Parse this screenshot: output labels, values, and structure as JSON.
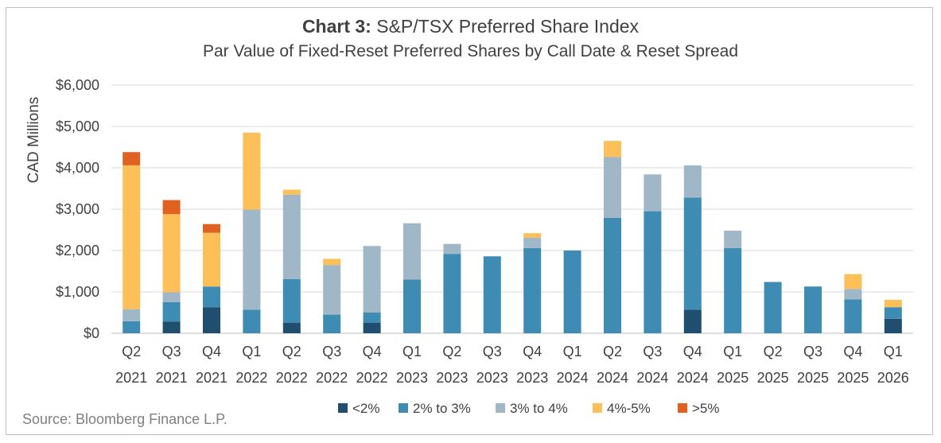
{
  "title_bold": "Chart 3:",
  "title_rest": " S&P/TSX Preferred Share Index",
  "subtitle": "Par Value of Fixed-Reset Preferred Shares by Call Date & Reset Spread",
  "source": "Source: Bloomberg Finance L.P.",
  "chart_data": {
    "type": "bar",
    "stacked": true,
    "title": "Chart 3: S&P/TSX Preferred Share Index",
    "subtitle": "Par Value of Fixed-Reset Preferred Shares by Call Date & Reset Spread",
    "ylabel": "CAD Millions",
    "xlabel": "",
    "ylim": [
      0,
      6000
    ],
    "yticks": [
      0,
      1000,
      2000,
      3000,
      4000,
      5000,
      6000
    ],
    "ytick_labels": [
      "$0",
      "$1,000",
      "$2,000",
      "$3,000",
      "$4,000",
      "$5,000",
      "$6,000"
    ],
    "grid": true,
    "legend_position": "bottom",
    "categories": [
      {
        "q": "Q2",
        "y": "2021"
      },
      {
        "q": "Q3",
        "y": "2021"
      },
      {
        "q": "Q4",
        "y": "2021"
      },
      {
        "q": "Q1",
        "y": "2022"
      },
      {
        "q": "Q2",
        "y": "2022"
      },
      {
        "q": "Q3",
        "y": "2022"
      },
      {
        "q": "Q4",
        "y": "2022"
      },
      {
        "q": "Q1",
        "y": "2023"
      },
      {
        "q": "Q2",
        "y": "2023"
      },
      {
        "q": "Q3",
        "y": "2023"
      },
      {
        "q": "Q4",
        "y": "2023"
      },
      {
        "q": "Q1",
        "y": "2024"
      },
      {
        "q": "Q2",
        "y": "2024"
      },
      {
        "q": "Q3",
        "y": "2024"
      },
      {
        "q": "Q4",
        "y": "2024"
      },
      {
        "q": "Q1",
        "y": "2025"
      },
      {
        "q": "Q2",
        "y": "2025"
      },
      {
        "q": "Q3",
        "y": "2025"
      },
      {
        "q": "Q4",
        "y": "2025"
      },
      {
        "q": "Q1",
        "y": "2026"
      }
    ],
    "series": [
      {
        "name": "<2%",
        "color": "#1f4e6e",
        "values": [
          0,
          280,
          630,
          0,
          250,
          0,
          250,
          0,
          0,
          0,
          0,
          0,
          0,
          0,
          570,
          0,
          0,
          0,
          0,
          350
        ]
      },
      {
        "name": "2% to 3%",
        "color": "#3e8cb3",
        "values": [
          290,
          470,
          500,
          570,
          1060,
          450,
          250,
          1300,
          1920,
          1860,
          2060,
          2000,
          2790,
          2950,
          2710,
          2060,
          1240,
          1130,
          820,
          280
        ]
      },
      {
        "name": "3% to 4%",
        "color": "#9fb7c7",
        "values": [
          290,
          240,
          0,
          2420,
          2040,
          1200,
          1610,
          1360,
          240,
          0,
          250,
          0,
          1470,
          890,
          780,
          420,
          0,
          0,
          250,
          0
        ]
      },
      {
        "name": "4%-5%",
        "color": "#fdbf57",
        "values": [
          3480,
          1890,
          1300,
          1860,
          120,
          150,
          0,
          0,
          0,
          0,
          110,
          0,
          390,
          0,
          0,
          0,
          0,
          0,
          360,
          180
        ]
      },
      {
        "name": ">5%",
        "color": "#e06120",
        "values": [
          320,
          340,
          210,
          0,
          0,
          0,
          0,
          0,
          0,
          0,
          0,
          0,
          0,
          0,
          0,
          0,
          0,
          0,
          0,
          0
        ]
      }
    ]
  }
}
